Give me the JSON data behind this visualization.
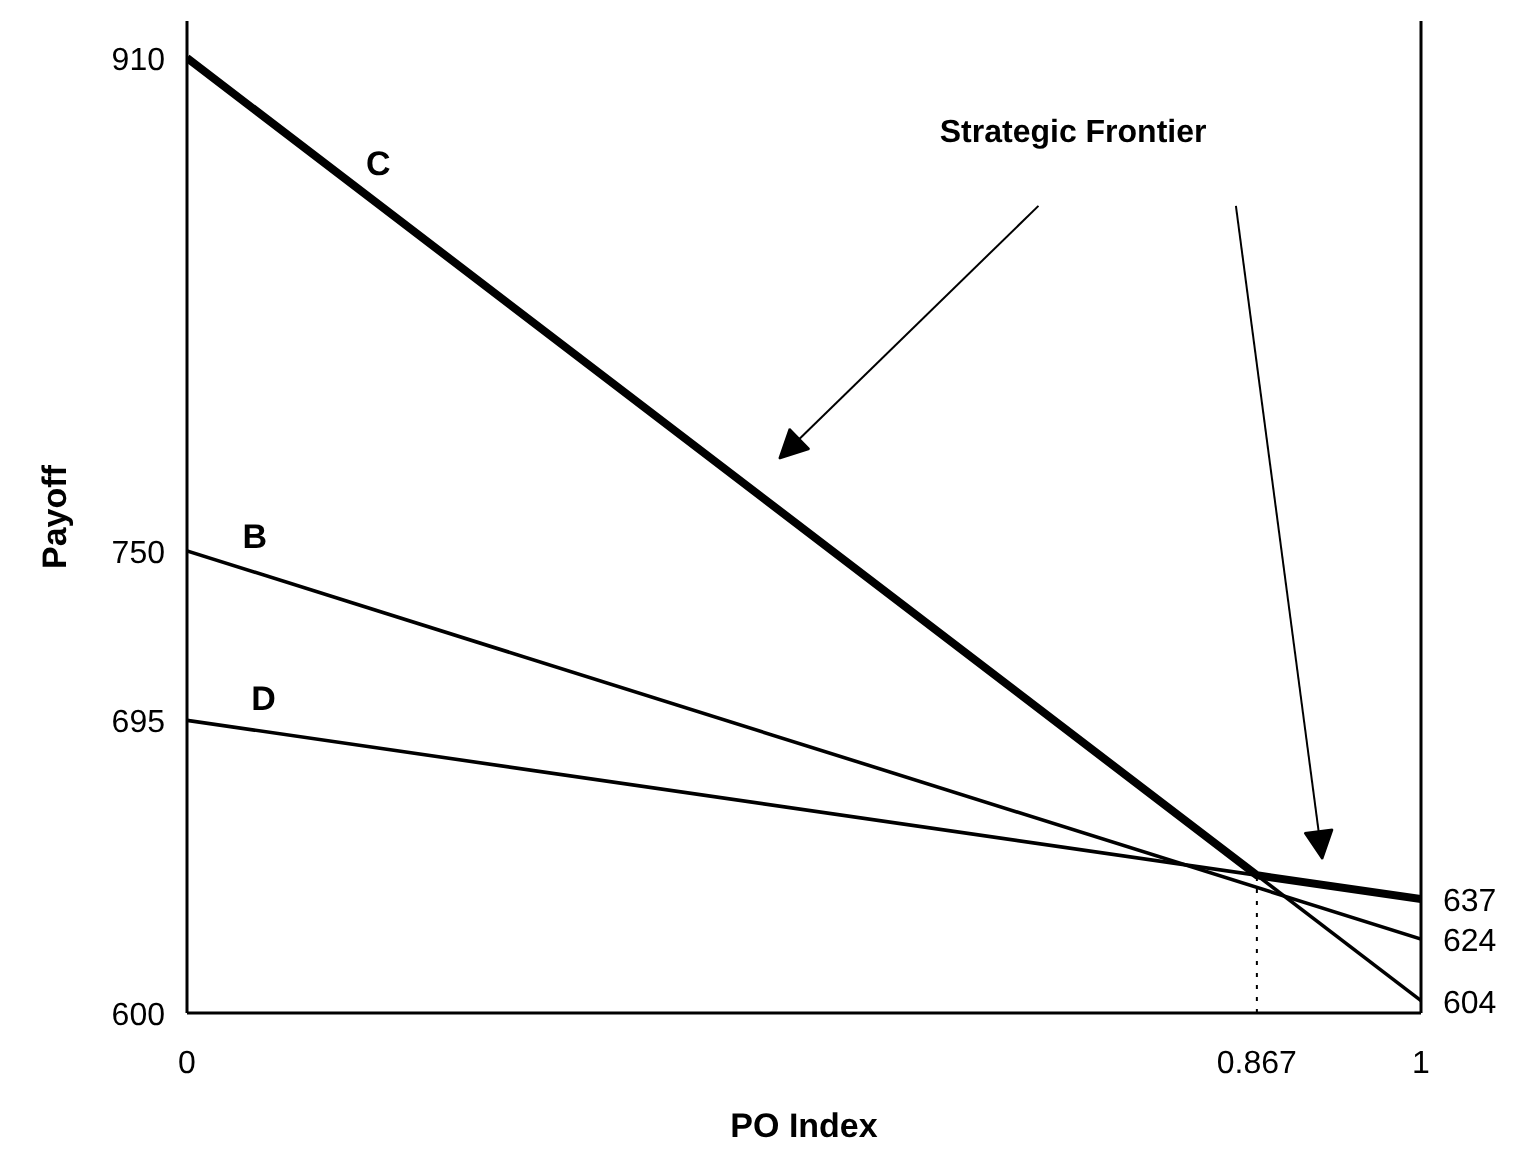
{
  "chart_data": {
    "type": "line",
    "xlabel": "PO Index",
    "ylabel": "Payoff",
    "x": [
      0,
      1
    ],
    "series": [
      {
        "name": "C",
        "color": "#000000",
        "values": [
          910,
          604
        ]
      },
      {
        "name": "B",
        "color": "#000000",
        "values": [
          750,
          624
        ]
      },
      {
        "name": "D",
        "color": "#000000",
        "values": [
          695,
          637
        ]
      },
      {
        "color": "#000000",
        "x": [
          0,
          0.867,
          1
        ],
        "values": [
          910,
          644.7,
          637
        ]
      }
    ],
    "xlim": [
      0,
      1
    ],
    "xticks": [
      0,
      0.867,
      1
    ],
    "ylim": [
      600,
      922
    ],
    "yticks": [
      600,
      695,
      750,
      910
    ],
    "y2lim": [
      600,
      922
    ],
    "y2ticks": [
      604,
      624,
      637
    ],
    "ref_lines": [
      {
        "axis": "x",
        "value": 0.867,
        "line_style": "dotted",
        "color": "#000000"
      }
    ],
    "annotations": [
      "Strategic Frontier"
    ],
    "grid": false,
    "marker": "none",
    "line_style": "solid"
  }
}
